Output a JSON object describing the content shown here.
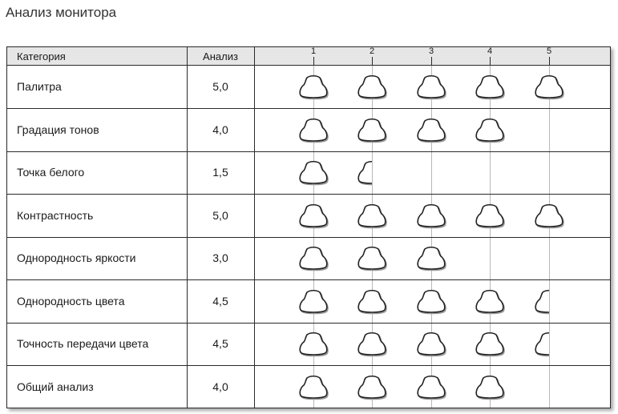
{
  "page": {
    "title": "Анализ монитора"
  },
  "table": {
    "headers": {
      "category": "Категория",
      "score": "Анализ"
    },
    "scale_ticks": [
      "1",
      "2",
      "3",
      "4",
      "5"
    ],
    "icon": "monitor-rating-icon",
    "colors": {
      "border": "#2a2a2a",
      "header_bg": "#e6e6e6",
      "guide": "#b8b8b8",
      "icon_stroke": "#222222"
    },
    "rows": [
      {
        "category": "Палитра",
        "score": "5,0",
        "rating": 5.0
      },
      {
        "category": "Градация тонов",
        "score": "4,0",
        "rating": 4.0
      },
      {
        "category": "Точка белого",
        "score": "1,5",
        "rating": 1.5
      },
      {
        "category": "Контрастность",
        "score": "5,0",
        "rating": 5.0
      },
      {
        "category": "Однородность яркости",
        "score": "3,0",
        "rating": 3.0
      },
      {
        "category": "Однородность цвета",
        "score": "4,5",
        "rating": 4.5
      },
      {
        "category": "Точность передачи цвета",
        "score": "4,5",
        "rating": 4.5
      },
      {
        "category": "Общий анализ",
        "score": "4,0",
        "rating": 4.0
      }
    ]
  }
}
